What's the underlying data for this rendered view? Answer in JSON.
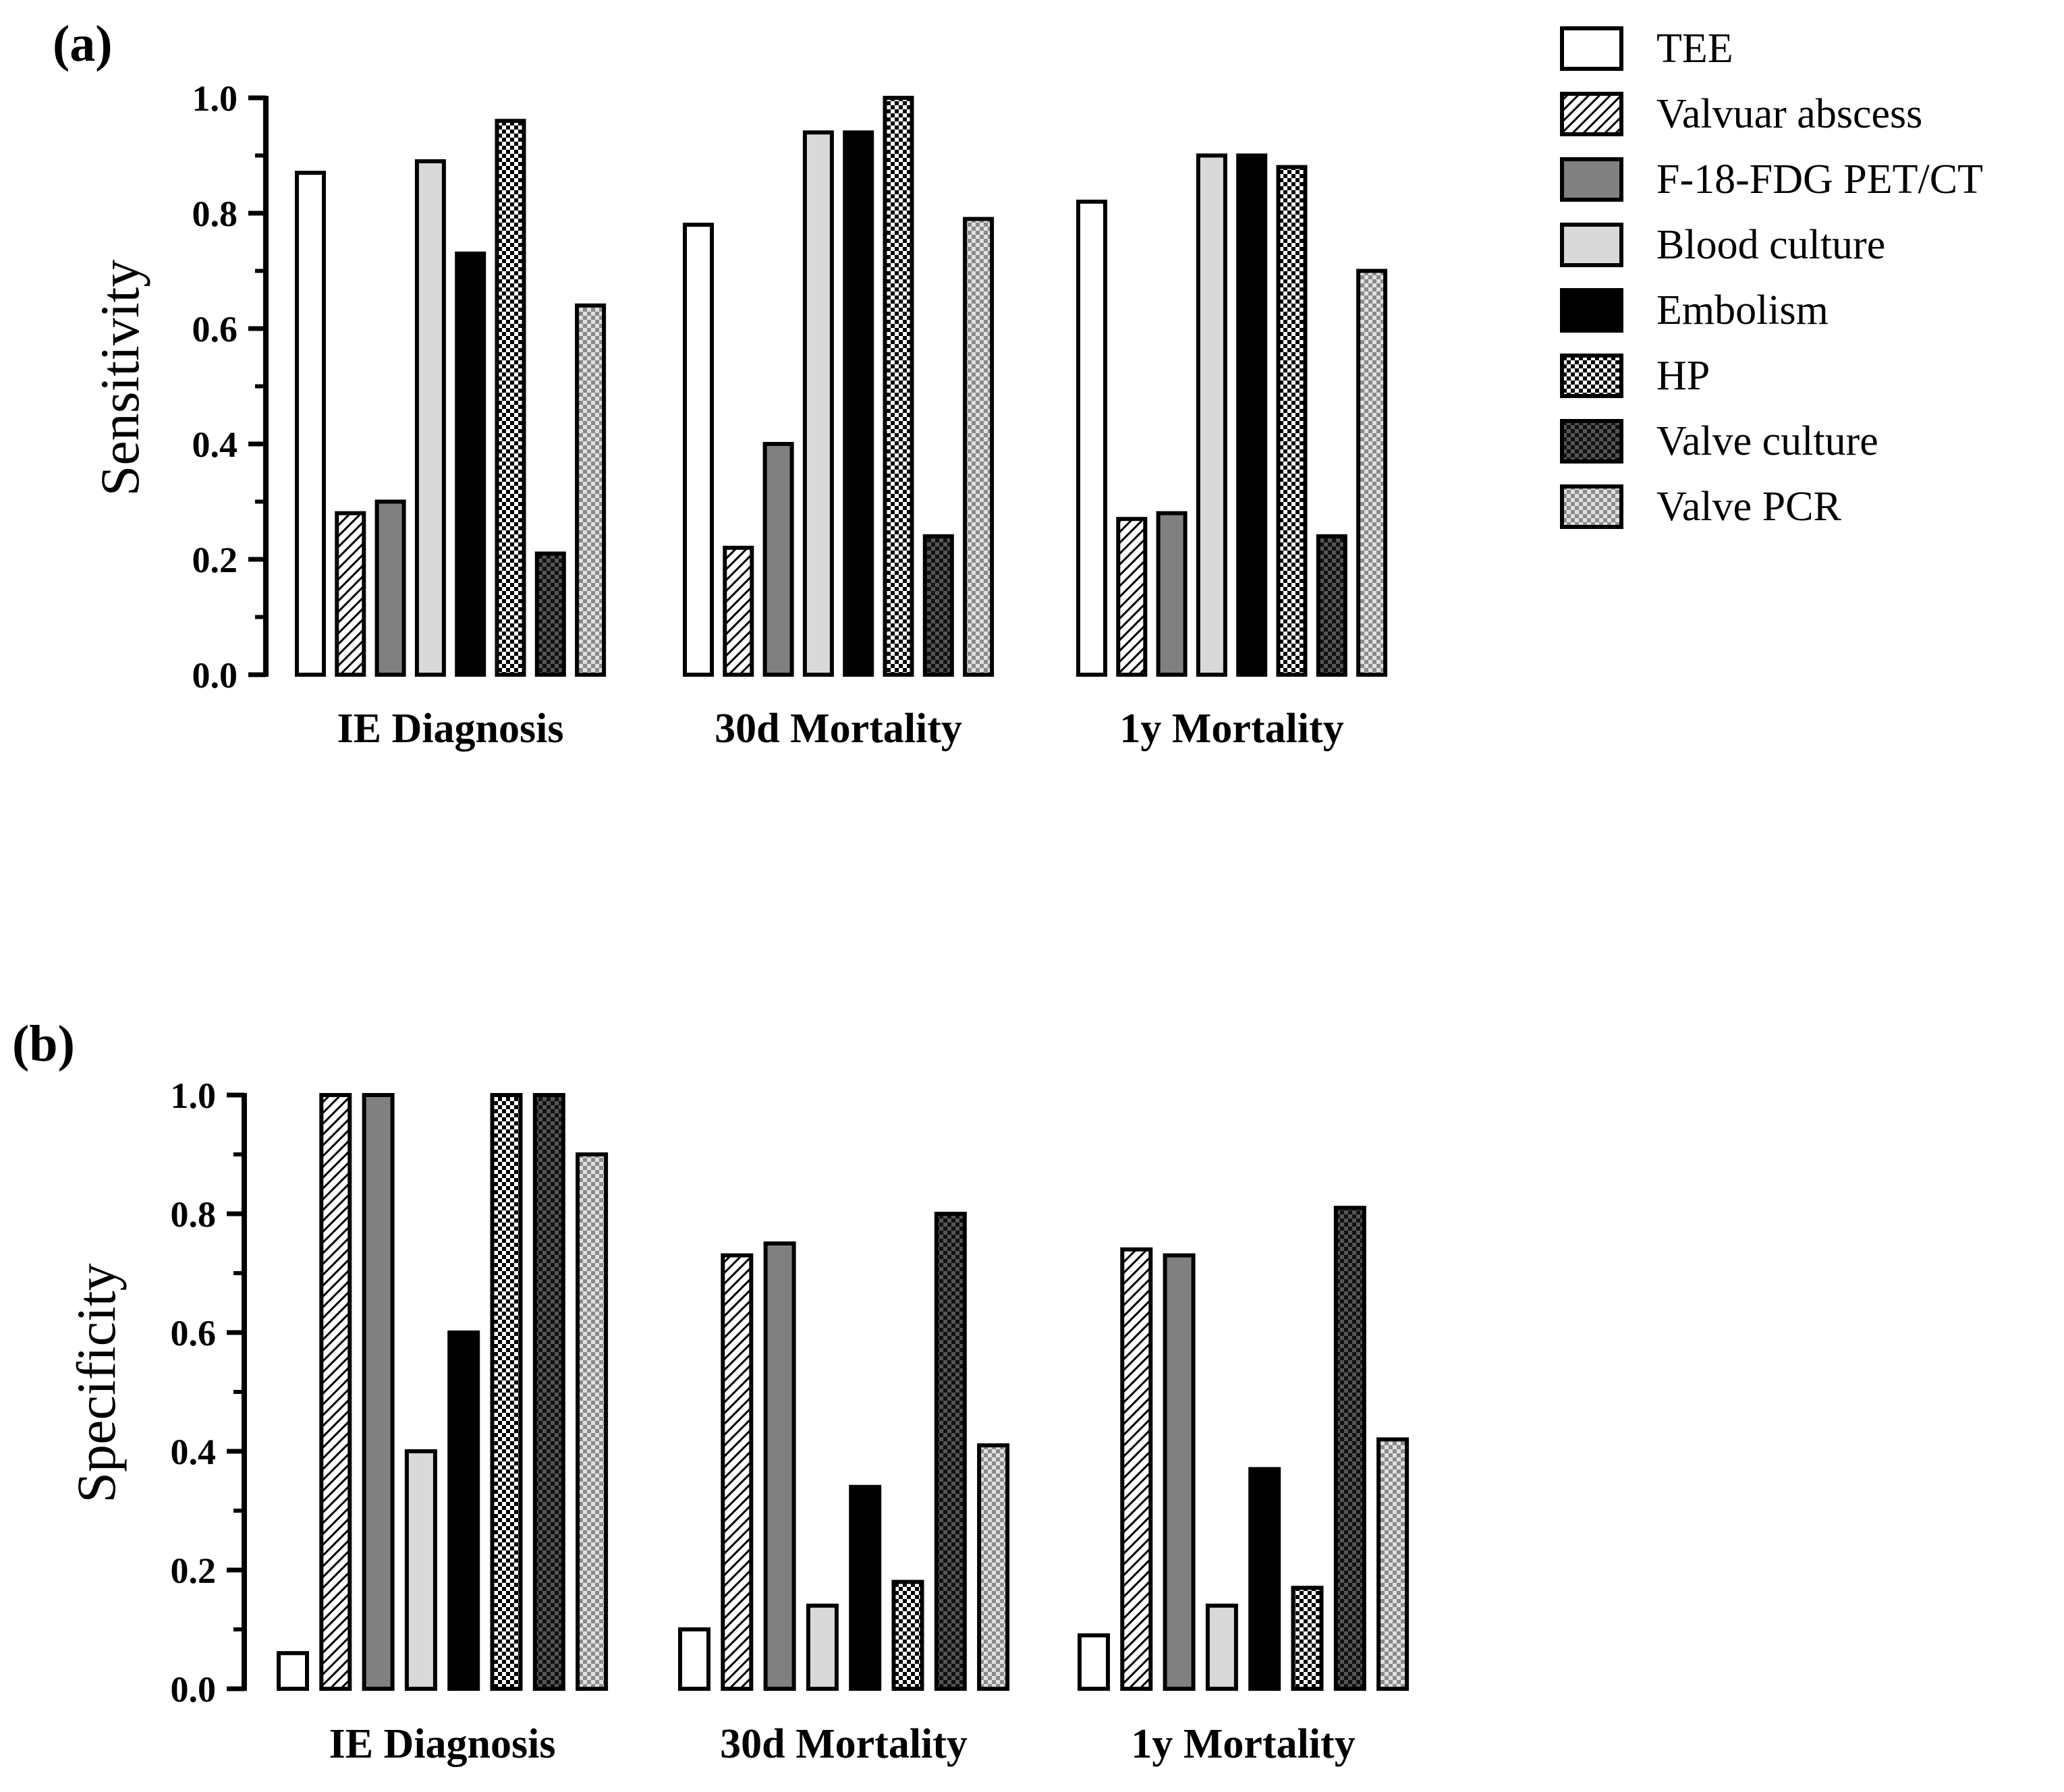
{
  "legend": [
    {
      "label": "TEE",
      "pattern": "white"
    },
    {
      "label": "Valvuar abscess",
      "pattern": "hatch"
    },
    {
      "label": "F-18-FDG PET/CT",
      "pattern": "darkgray"
    },
    {
      "label": "Blood culture",
      "pattern": "lightgray"
    },
    {
      "label": "Embolism",
      "pattern": "black"
    },
    {
      "label": "HP",
      "pattern": "checker"
    },
    {
      "label": "Valve culture",
      "pattern": "darkchecker"
    },
    {
      "label": "Valve PCR",
      "pattern": "graychecker"
    }
  ],
  "colors": {
    "white": "#ffffff",
    "darkgray": "#808080",
    "lightgray": "#d9d9d9",
    "black": "#000000",
    "stroke": "#000000"
  },
  "chart_data": [
    {
      "type": "bar",
      "panel_label": "(a)",
      "ylabel": "Sensitivity",
      "xlabel": "",
      "ylim": [
        0,
        1
      ],
      "yticks": [
        "0.0",
        "0.2",
        "0.4",
        "0.6",
        "0.8",
        "1.0"
      ],
      "categories": [
        "IE Diagnosis",
        "30d Mortality",
        "1y Mortality"
      ],
      "series": [
        {
          "name": "TEE",
          "values": [
            0.87,
            0.78,
            0.82
          ]
        },
        {
          "name": "Valvuar abscess",
          "values": [
            0.28,
            0.22,
            0.27
          ]
        },
        {
          "name": "F-18-FDG PET/CT",
          "values": [
            0.3,
            0.4,
            0.28
          ]
        },
        {
          "name": "Blood culture",
          "values": [
            0.89,
            0.94,
            0.9
          ]
        },
        {
          "name": "Embolism",
          "values": [
            0.73,
            0.94,
            0.9
          ]
        },
        {
          "name": "HP",
          "values": [
            0.96,
            1.0,
            0.88
          ]
        },
        {
          "name": "Valve culture",
          "values": [
            0.21,
            0.24,
            0.24
          ]
        },
        {
          "name": "Valve PCR",
          "values": [
            0.64,
            0.79,
            0.7
          ]
        }
      ]
    },
    {
      "type": "bar",
      "panel_label": "(b)",
      "ylabel": "Specificity",
      "xlabel": "",
      "ylim": [
        0,
        1
      ],
      "yticks": [
        "0.0",
        "0.2",
        "0.4",
        "0.6",
        "0.8",
        "1.0"
      ],
      "categories": [
        "IE Diagnosis",
        "30d Mortality",
        "1y Mortality"
      ],
      "series": [
        {
          "name": "TEE",
          "values": [
            0.06,
            0.1,
            0.09
          ]
        },
        {
          "name": "Valvuar abscess",
          "values": [
            1.0,
            0.73,
            0.74
          ]
        },
        {
          "name": "F-18-FDG PET/CT",
          "values": [
            1.0,
            0.75,
            0.73
          ]
        },
        {
          "name": "Blood culture",
          "values": [
            0.4,
            0.14,
            0.14
          ]
        },
        {
          "name": "Embolism",
          "values": [
            0.6,
            0.34,
            0.37
          ]
        },
        {
          "name": "HP",
          "values": [
            1.0,
            0.18,
            0.17
          ]
        },
        {
          "name": "Valve culture",
          "values": [
            1.0,
            0.8,
            0.81
          ]
        },
        {
          "name": "Valve PCR",
          "values": [
            0.9,
            0.41,
            0.42
          ]
        }
      ]
    }
  ]
}
